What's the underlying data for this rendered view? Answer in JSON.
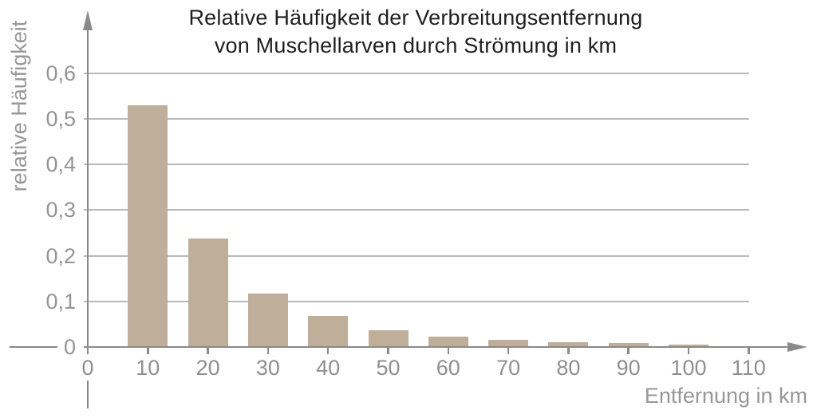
{
  "title": {
    "line1": "Relative Häufigkeit der Verbreitungsentfernung",
    "line2": "von Muschellarven durch Strömung in km"
  },
  "y_axis": {
    "label": "relative Häufigkeit",
    "tick_labels": [
      "0",
      "0,1",
      "0,2",
      "0,3",
      "0,4",
      "0,5",
      "0,6"
    ]
  },
  "x_axis": {
    "label": "Entfernung in km",
    "tick_labels": [
      "0",
      "10",
      "20",
      "30",
      "40",
      "50",
      "60",
      "70",
      "80",
      "90",
      "100",
      "110"
    ]
  },
  "colors": {
    "bar": "#beae9a",
    "axis": "#8a8a8a",
    "grid": "#b9b9b9",
    "gray_text": "#949494",
    "title_text": "#1f1f1f"
  },
  "chart_data": {
    "type": "bar",
    "title": "Relative Häufigkeit der Verbreitungsentfernung von Muschellarven durch Strömung in km",
    "xlabel": "Entfernung in km",
    "ylabel": "relative Häufigkeit",
    "categories": [
      10,
      20,
      30,
      40,
      50,
      60,
      70,
      80,
      90,
      100
    ],
    "values": [
      0.53,
      0.237,
      0.117,
      0.068,
      0.037,
      0.022,
      0.015,
      0.011,
      0.008,
      0.005
    ],
    "xticks": [
      0,
      10,
      20,
      30,
      40,
      50,
      60,
      70,
      80,
      90,
      100,
      110
    ],
    "yticks": [
      0,
      0.1,
      0.2,
      0.3,
      0.4,
      0.5,
      0.6
    ],
    "xlim": [
      0,
      117
    ],
    "ylim": [
      0,
      0.65
    ],
    "grid": true,
    "legend": false,
    "decimal_separator": ","
  }
}
